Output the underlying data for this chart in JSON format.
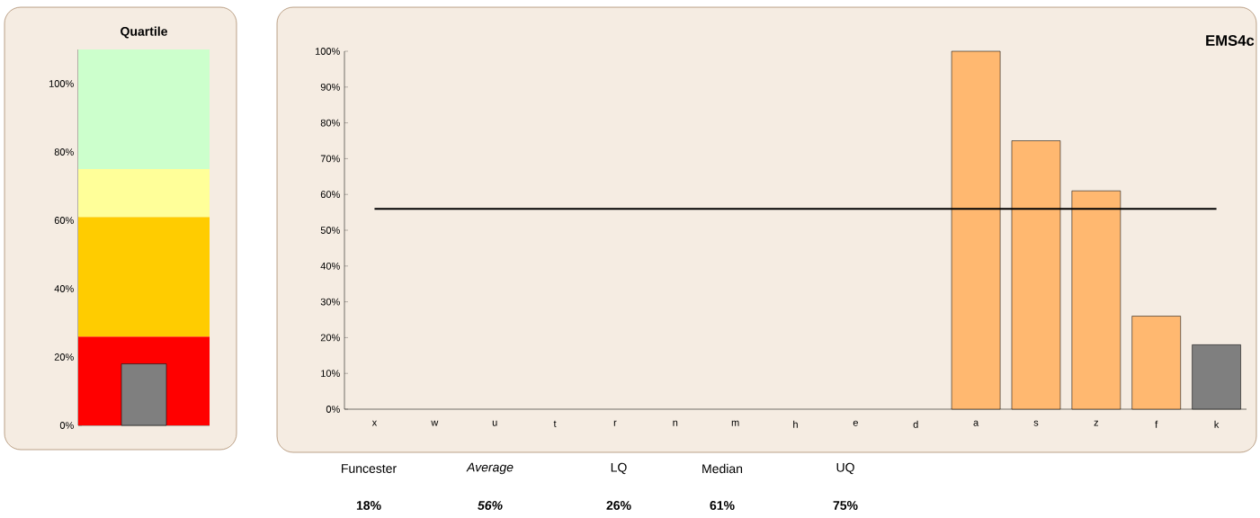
{
  "chart_data": [
    {
      "type": "bar",
      "title": "Quartile",
      "categories": [
        null
      ],
      "values": [
        18
      ],
      "colors": [
        "#7f7f7f"
      ],
      "ylim": [
        0,
        110
      ],
      "yticks": [
        {
          "value": 0,
          "label": "0%"
        },
        {
          "value": 20,
          "label": "20%"
        },
        {
          "value": 40,
          "label": "40%"
        },
        {
          "value": 60,
          "label": "60%"
        },
        {
          "value": 80,
          "label": "80%"
        },
        {
          "value": 100,
          "label": "100%"
        }
      ],
      "bands": [
        {
          "axis": "y",
          "from": 0,
          "to": 26,
          "color": "#ff0000"
        },
        {
          "axis": "y",
          "from": 26,
          "to": 61,
          "color": "#ffcc00"
        },
        {
          "axis": "y",
          "from": 61,
          "to": 75,
          "color": "#ffff99"
        },
        {
          "axis": "y",
          "from": 75,
          "to": 110,
          "color": "#ccffcc"
        }
      ]
    },
    {
      "type": "bar",
      "title": "EMS4c",
      "categories": [
        "x",
        "w",
        "u",
        "t",
        "r",
        "n",
        "m",
        "h",
        "e",
        "d",
        "a",
        "s",
        "z",
        "f",
        "k"
      ],
      "values": [
        null,
        null,
        null,
        null,
        null,
        null,
        null,
        null,
        null,
        null,
        100,
        75,
        61,
        26,
        18
      ],
      "colors": [
        "#ffb870",
        "#ffb870",
        "#ffb870",
        "#ffb870",
        "#ffb870",
        "#ffb870",
        "#ffb870",
        "#ffb870",
        "#ffb870",
        "#ffb870",
        "#ffb870",
        "#ffb870",
        "#ffb870",
        "#ffb870",
        "#7f7f7f"
      ],
      "ylim": [
        0,
        100
      ],
      "yticks": [
        {
          "value": 0,
          "label": "0%"
        },
        {
          "value": 10,
          "label": "10%"
        },
        {
          "value": 20,
          "label": "20%"
        },
        {
          "value": 30,
          "label": "30%"
        },
        {
          "value": 40,
          "label": "40%"
        },
        {
          "value": 50,
          "label": "50%"
        },
        {
          "value": 60,
          "label": "60%"
        },
        {
          "value": 70,
          "label": "70%"
        },
        {
          "value": 80,
          "label": "80%"
        },
        {
          "value": 90,
          "label": "90%"
        },
        {
          "value": 100,
          "label": "100%"
        }
      ],
      "ref_lines": [
        {
          "axis": "y",
          "value": 56,
          "color": "#000000"
        }
      ],
      "annotations": [
        "Funcester",
        "Average",
        "LQ",
        "Median",
        "UQ",
        "18%",
        "56%",
        "26%",
        "61%",
        "75%"
      ]
    }
  ]
}
